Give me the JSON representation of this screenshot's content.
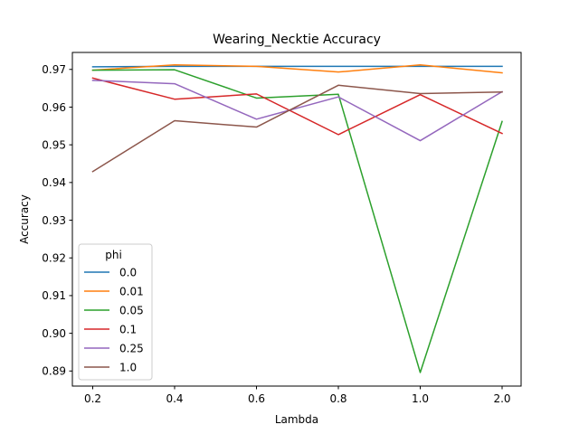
{
  "chart_data": {
    "type": "line",
    "title": "Wearing_Necktie Accuracy",
    "xlabel": "Lambda",
    "ylabel": "Accuracy",
    "categories": [
      "0.2",
      "0.4",
      "0.6",
      "0.8",
      "1.0",
      "2.0"
    ],
    "ylim": [
      0.886,
      0.9745
    ],
    "yticks": [
      "0.89",
      "0.90",
      "0.91",
      "0.92",
      "0.93",
      "0.94",
      "0.95",
      "0.96",
      "0.97"
    ],
    "grid": false,
    "legend": {
      "title": "phi",
      "placement": "lower-left"
    },
    "series": [
      {
        "name": "0.0",
        "color": "#1f77b4",
        "values": [
          0.9707,
          0.9708,
          0.9708,
          0.9708,
          0.9708,
          0.9708
        ]
      },
      {
        "name": "0.01",
        "color": "#ff7f0e",
        "values": [
          0.9698,
          0.9712,
          0.9708,
          0.9693,
          0.9712,
          0.9691
        ]
      },
      {
        "name": "0.05",
        "color": "#2ca02c",
        "values": [
          0.9698,
          0.9699,
          0.9624,
          0.9634,
          0.8896,
          0.9562
        ]
      },
      {
        "name": "0.1",
        "color": "#d62728",
        "values": [
          0.9677,
          0.9621,
          0.9635,
          0.9527,
          0.9633,
          0.953
        ]
      },
      {
        "name": "0.25",
        "color": "#9467bd",
        "values": [
          0.9671,
          0.9662,
          0.9568,
          0.9627,
          0.9511,
          0.9641
        ]
      },
      {
        "name": "1.0",
        "color": "#8c564b",
        "values": [
          0.9429,
          0.9564,
          0.9547,
          0.9658,
          0.9636,
          0.964
        ]
      }
    ]
  }
}
